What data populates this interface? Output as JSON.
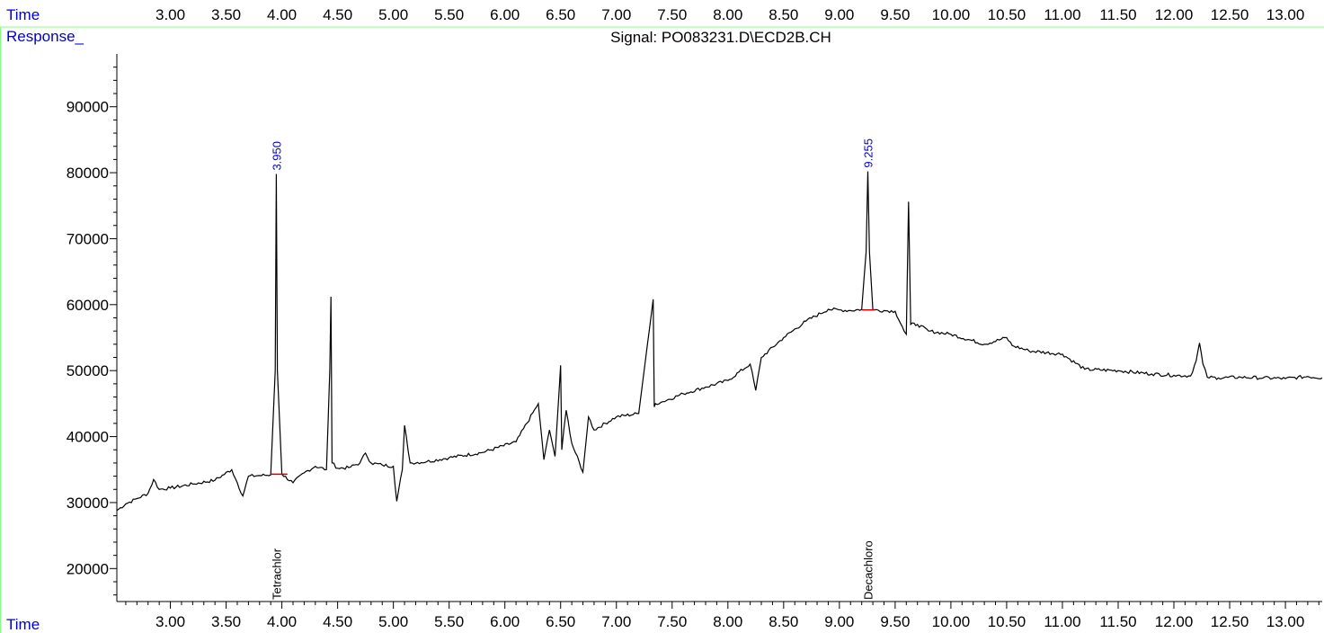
{
  "header": {
    "time_label": "Time",
    "response_label": "Response_",
    "signal_title": "Signal: PO083231.D\\ECD2B.CH"
  },
  "footer": {
    "time_label": "Time"
  },
  "colors": {
    "axis_label_blue": "#0000cc",
    "trace": "#000000",
    "baseline_marker": "#cc0000",
    "frame_green": "#80ff80"
  },
  "chart_data": {
    "type": "line",
    "title": "Signal: PO083231.D\\ECD2B.CH",
    "xlabel": "Time",
    "ylabel": "Response_",
    "xlim": [
      2.52,
      13.33
    ],
    "ylim": [
      15000,
      98000
    ],
    "x_ticks": [
      3.0,
      3.5,
      4.0,
      4.5,
      5.0,
      5.5,
      6.0,
      6.5,
      7.0,
      7.5,
      8.0,
      8.5,
      9.0,
      9.5,
      10.0,
      10.5,
      11.0,
      11.5,
      12.0,
      12.5,
      13.0
    ],
    "x_tick_labels": [
      "3.00",
      "3.50",
      "4.00",
      "4.50",
      "5.00",
      "5.50",
      "6.00",
      "6.50",
      "7.00",
      "7.50",
      "8.00",
      "8.50",
      "9.00",
      "9.50",
      "10.00",
      "10.50",
      "11.00",
      "11.50",
      "12.00",
      "12.50",
      "13.00"
    ],
    "y_ticks": [
      20000,
      30000,
      40000,
      50000,
      60000,
      70000,
      80000,
      90000
    ],
    "y_tick_labels": [
      "20000",
      "30000",
      "40000",
      "50000",
      "60000",
      "70000",
      "80000",
      "90000"
    ],
    "grid": false,
    "series": [
      {
        "x": [
          2.52,
          2.6,
          2.7,
          2.8,
          2.85,
          2.9,
          3.0,
          3.2,
          3.4,
          3.55,
          3.6,
          3.65,
          3.7,
          3.8,
          3.9,
          3.94,
          3.95,
          3.96,
          4.0,
          4.1,
          4.2,
          4.3,
          4.4,
          4.43,
          4.44,
          4.45,
          4.5,
          4.6,
          4.7,
          4.75,
          4.8,
          4.9,
          5.0,
          5.03,
          5.08,
          5.1,
          5.15,
          5.3,
          5.5,
          5.8,
          6.1,
          6.3,
          6.35,
          6.4,
          6.45,
          6.5,
          6.51,
          6.55,
          6.6,
          6.7,
          6.75,
          6.8,
          7.0,
          7.2,
          7.33,
          7.34,
          7.35,
          7.4,
          7.6,
          7.8,
          8.0,
          8.2,
          8.25,
          8.3,
          8.5,
          8.7,
          8.9,
          9.0,
          9.1,
          9.2,
          9.24,
          9.255,
          9.27,
          9.3,
          9.4,
          9.5,
          9.58,
          9.6,
          9.62,
          9.64,
          9.7,
          9.8,
          10.0,
          10.3,
          10.5,
          10.55,
          10.7,
          11.0,
          11.2,
          11.5,
          11.8,
          12.0,
          12.15,
          12.2,
          12.23,
          12.26,
          12.3,
          12.4,
          12.6,
          12.8,
          13.0,
          13.2,
          13.33
        ],
        "y": [
          28800,
          29800,
          30600,
          31400,
          33500,
          32000,
          32200,
          32800,
          33400,
          35000,
          33000,
          31000,
          34000,
          34100,
          34200,
          50000,
          79800,
          50000,
          34300,
          33000,
          34500,
          35500,
          35000,
          50000,
          61200,
          36000,
          35200,
          35300,
          36000,
          37500,
          36000,
          35700,
          35500,
          30200,
          35000,
          41700,
          36000,
          36200,
          36800,
          37600,
          39200,
          45000,
          36500,
          41000,
          37000,
          50800,
          38000,
          44000,
          39000,
          34600,
          43000,
          41000,
          43000,
          43500,
          60800,
          44500,
          45000,
          45200,
          46500,
          47500,
          48500,
          51000,
          47000,
          52000,
          55000,
          57500,
          59300,
          59200,
          59100,
          59300,
          68000,
          80200,
          68000,
          59200,
          59100,
          59000,
          56000,
          55500,
          75600,
          57000,
          57000,
          56000,
          55500,
          54000,
          55000,
          53800,
          53000,
          52500,
          50200,
          50000,
          49500,
          49300,
          49200,
          51500,
          54200,
          51000,
          49000,
          48900,
          49000,
          48900,
          48800,
          49100,
          48900
        ]
      }
    ],
    "peak_labels": [
      {
        "x": 3.95,
        "y": 79800,
        "text": "3.950"
      },
      {
        "x": 9.255,
        "y": 80200,
        "text": "9.255"
      }
    ],
    "compound_labels": [
      {
        "x": 3.95,
        "text": "Tetrachlor"
      },
      {
        "x": 9.255,
        "text": "Decachloro"
      }
    ],
    "baselines": [
      {
        "x1": 3.9,
        "x2": 4.05,
        "y": 34300
      },
      {
        "x1": 9.2,
        "x2": 9.32,
        "y": 59200
      }
    ]
  }
}
